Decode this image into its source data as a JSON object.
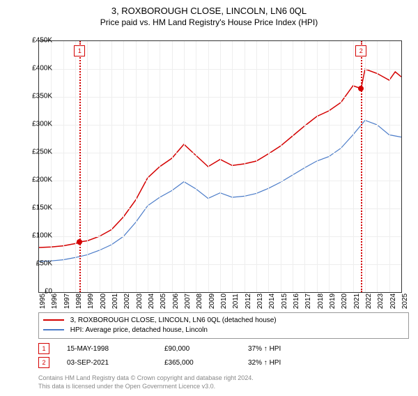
{
  "title_main": "3, ROXBOROUGH CLOSE, LINCOLN, LN6 0QL",
  "title_sub": "Price paid vs. HM Land Registry's House Price Index (HPI)",
  "chart": {
    "type": "line",
    "ylim": [
      0,
      450000
    ],
    "ystep": 50000,
    "ylabels": [
      "£0",
      "£50K",
      "£100K",
      "£150K",
      "£200K",
      "£250K",
      "£300K",
      "£350K",
      "£400K",
      "£450K"
    ],
    "xlim": [
      1995,
      2025
    ],
    "xlabels": [
      "1995",
      "1996",
      "1997",
      "1998",
      "1999",
      "2000",
      "2001",
      "2002",
      "2003",
      "2004",
      "2005",
      "2006",
      "2007",
      "2008",
      "2009",
      "2010",
      "2011",
      "2012",
      "2013",
      "2014",
      "2015",
      "2016",
      "2017",
      "2018",
      "2019",
      "2020",
      "2021",
      "2022",
      "2023",
      "2024",
      "2025"
    ],
    "series_price": {
      "color": "#d40000",
      "width": 1.5,
      "points": [
        [
          1995,
          80000
        ],
        [
          1996,
          81000
        ],
        [
          1997,
          83000
        ],
        [
          1998,
          87000
        ],
        [
          1998.37,
          90000
        ],
        [
          1999,
          92000
        ],
        [
          2000,
          100000
        ],
        [
          2001,
          112000
        ],
        [
          2002,
          135000
        ],
        [
          2003,
          165000
        ],
        [
          2004,
          205000
        ],
        [
          2005,
          225000
        ],
        [
          2006,
          240000
        ],
        [
          2007,
          265000
        ],
        [
          2008,
          245000
        ],
        [
          2009,
          225000
        ],
        [
          2010,
          238000
        ],
        [
          2011,
          227000
        ],
        [
          2012,
          230000
        ],
        [
          2013,
          235000
        ],
        [
          2014,
          248000
        ],
        [
          2015,
          262000
        ],
        [
          2016,
          280000
        ],
        [
          2017,
          298000
        ],
        [
          2018,
          315000
        ],
        [
          2019,
          325000
        ],
        [
          2020,
          340000
        ],
        [
          2021,
          370000
        ],
        [
          2021.67,
          365000
        ],
        [
          2022,
          400000
        ],
        [
          2023,
          392000
        ],
        [
          2024,
          380000
        ],
        [
          2024.5,
          395000
        ],
        [
          2025,
          386000
        ]
      ]
    },
    "series_hpi": {
      "color": "#4a7bc8",
      "width": 1.2,
      "points": [
        [
          1995,
          55000
        ],
        [
          1996,
          56000
        ],
        [
          1997,
          58000
        ],
        [
          1998,
          62000
        ],
        [
          1999,
          67000
        ],
        [
          2000,
          75000
        ],
        [
          2001,
          85000
        ],
        [
          2002,
          100000
        ],
        [
          2003,
          125000
        ],
        [
          2004,
          155000
        ],
        [
          2005,
          170000
        ],
        [
          2006,
          182000
        ],
        [
          2007,
          198000
        ],
        [
          2008,
          185000
        ],
        [
          2009,
          168000
        ],
        [
          2010,
          178000
        ],
        [
          2011,
          170000
        ],
        [
          2012,
          172000
        ],
        [
          2013,
          177000
        ],
        [
          2014,
          186000
        ],
        [
          2015,
          197000
        ],
        [
          2016,
          210000
        ],
        [
          2017,
          223000
        ],
        [
          2018,
          235000
        ],
        [
          2019,
          243000
        ],
        [
          2020,
          258000
        ],
        [
          2021,
          282000
        ],
        [
          2022,
          308000
        ],
        [
          2023,
          300000
        ],
        [
          2024,
          282000
        ],
        [
          2025,
          278000
        ]
      ]
    },
    "markers": [
      {
        "num": "1",
        "year": 1998.37,
        "price": 90000,
        "color": "#d40000"
      },
      {
        "num": "2",
        "year": 2021.67,
        "price": 365000,
        "color": "#d40000"
      }
    ],
    "background_color": "#ffffff",
    "grid_color": "#eeeeee",
    "border_color": "#333333"
  },
  "legend": {
    "items": [
      {
        "color": "#d40000",
        "label": "3, ROXBOROUGH CLOSE, LINCOLN, LN6 0QL (detached house)"
      },
      {
        "color": "#4a7bc8",
        "label": "HPI: Average price, detached house, Lincoln"
      }
    ]
  },
  "transactions": [
    {
      "num": "1",
      "color": "#d40000",
      "date": "15-MAY-1998",
      "price": "£90,000",
      "hpi_diff": "37% ↑ HPI"
    },
    {
      "num": "2",
      "color": "#d40000",
      "date": "03-SEP-2021",
      "price": "£365,000",
      "hpi_diff": "32% ↑ HPI"
    }
  ],
  "footer_line1": "Contains HM Land Registry data © Crown copyright and database right 2024.",
  "footer_line2": "This data is licensed under the Open Government Licence v3.0."
}
